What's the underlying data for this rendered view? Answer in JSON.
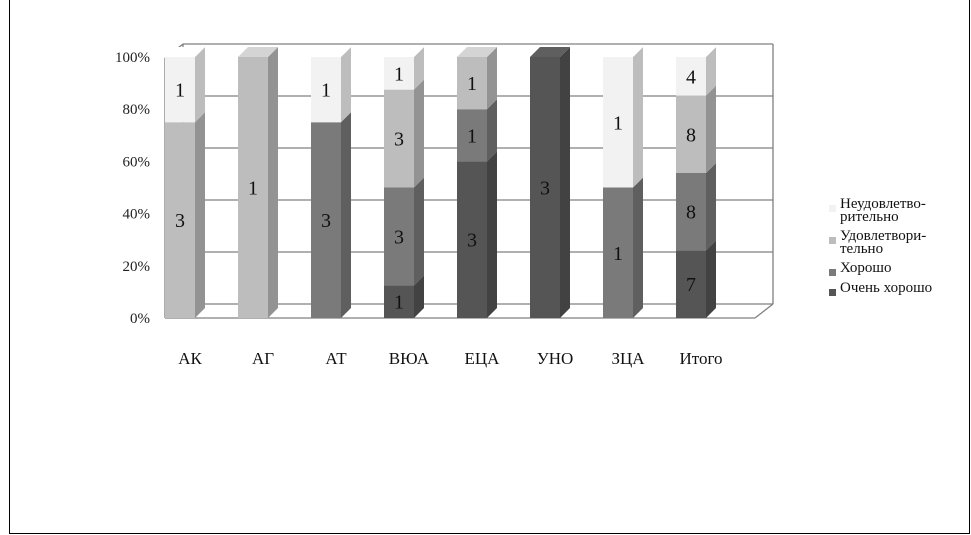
{
  "chart_data": {
    "type": "bar",
    "stacked": true,
    "percent": true,
    "three_d": true,
    "categories": [
      "АК",
      "АГ",
      "АТ",
      "ВЮА",
      "ЕЦА",
      "УНО",
      "ЗЦА",
      "Итого"
    ],
    "y_ticks": [
      "0%",
      "20%",
      "40%",
      "60%",
      "80%",
      "100%"
    ],
    "ylim": [
      0,
      100
    ],
    "grid": true,
    "legend_position": "right",
    "series": [
      {
        "name": "Очень хорошо",
        "color": "#555555",
        "values": [
          0,
          0,
          0,
          1,
          3,
          3,
          0,
          7
        ]
      },
      {
        "name": "Хорошо",
        "color": "#7a7a7a",
        "values": [
          0,
          0,
          3,
          3,
          1,
          0,
          1,
          8
        ]
      },
      {
        "name": "Удовлетвори-\nтельно",
        "color": "#bdbdbd",
        "values": [
          3,
          1,
          0,
          3,
          1,
          0,
          0,
          8
        ]
      },
      {
        "name": "Неудовлетво-\nрительно",
        "color": "#f2f2f2",
        "values": [
          1,
          0,
          1,
          1,
          0,
          0,
          1,
          4
        ]
      }
    ]
  },
  "legend": [
    {
      "label": "Неудовлетво-\nрительно",
      "color": "#f2f2f2"
    },
    {
      "label": "Удовлетвори-\nтельно",
      "color": "#bdbdbd"
    },
    {
      "label": "Хорошо",
      "color": "#7a7a7a"
    },
    {
      "label": "Очень хорошо",
      "color": "#555555"
    }
  ]
}
